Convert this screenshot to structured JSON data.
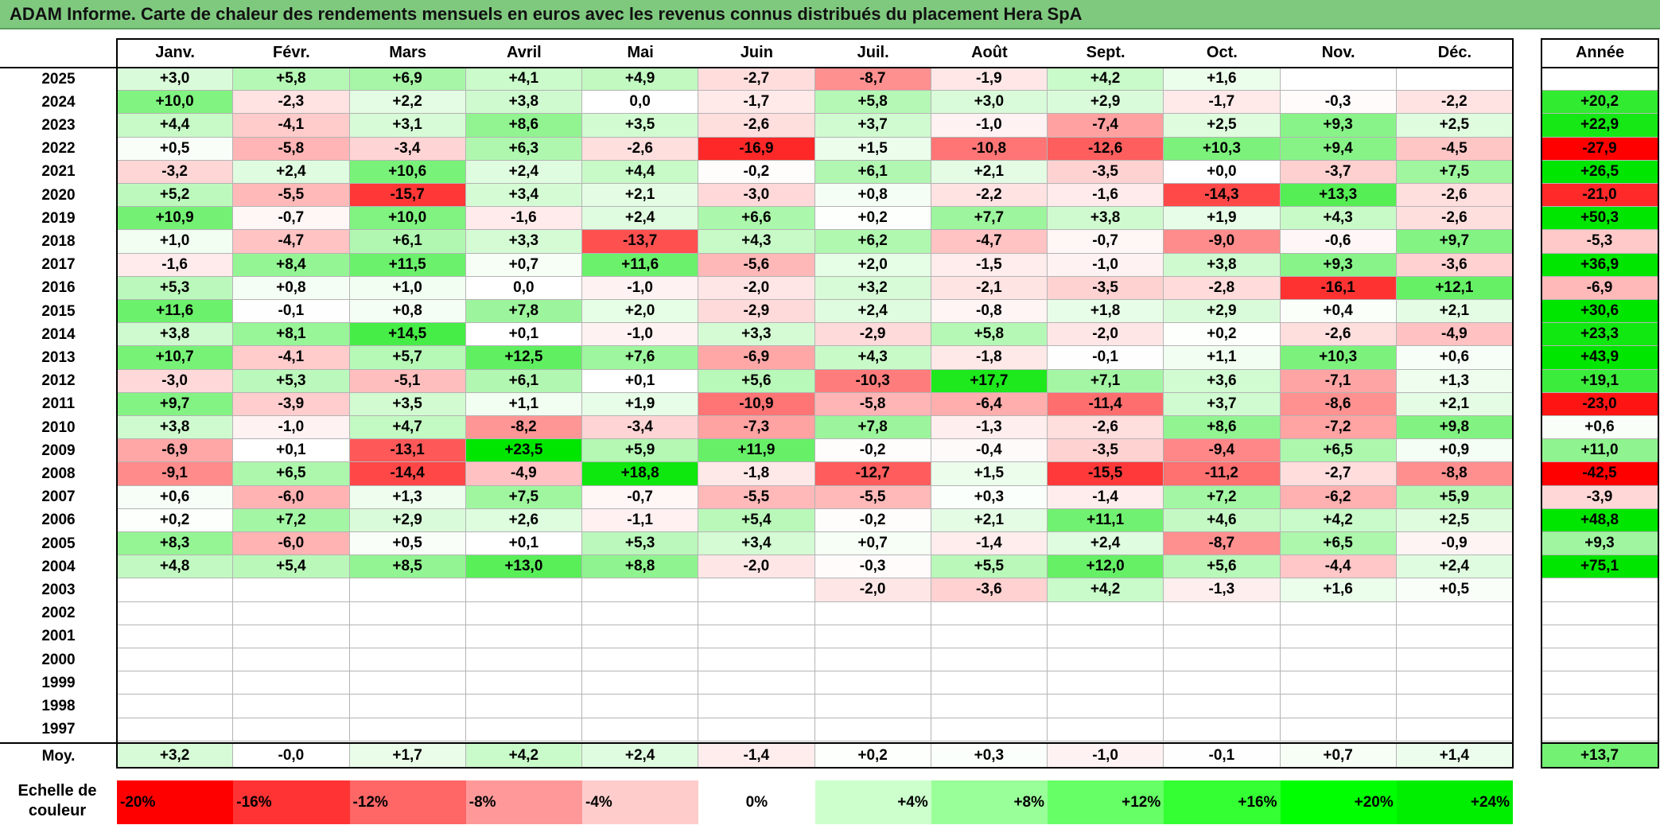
{
  "title": "ADAM Informe. Carte de chaleur des rendements mensuels en euros avec les revenus connus distribués du placement Hera SpA",
  "chart_data": {
    "type": "heatmap",
    "title": "ADAM Informe. Carte de chaleur des rendements mensuels en euros avec les revenus connus distribués du placement Hera SpA",
    "columns": [
      "Janv.",
      "Févr.",
      "Mars",
      "Avril",
      "Mai",
      "Juin",
      "Juil.",
      "Août",
      "Sept.",
      "Oct.",
      "Nov.",
      "Déc."
    ],
    "year_column_label": "Année",
    "average_row_label": "Moy.",
    "rows": [
      {
        "year": "2025",
        "values": [
          "+3,0",
          "+5,8",
          "+6,9",
          "+4,1",
          "+4,9",
          "-2,7",
          "-8,7",
          "-1,9",
          "+4,2",
          "+1,6",
          "",
          ""
        ],
        "annual": ""
      },
      {
        "year": "2024",
        "values": [
          "+10,0",
          "-2,3",
          "+2,2",
          "+3,8",
          "0,0",
          "-1,7",
          "+5,8",
          "+3,0",
          "+2,9",
          "-1,7",
          "-0,3",
          "-2,2"
        ],
        "annual": "+20,2"
      },
      {
        "year": "2023",
        "values": [
          "+4,4",
          "-4,1",
          "+3,1",
          "+8,6",
          "+3,5",
          "-2,6",
          "+3,7",
          "-1,0",
          "-7,4",
          "+2,5",
          "+9,3",
          "+2,5"
        ],
        "annual": "+22,9"
      },
      {
        "year": "2022",
        "values": [
          "+0,5",
          "-5,8",
          "-3,4",
          "+6,3",
          "-2,6",
          "-16,9",
          "+1,5",
          "-10,8",
          "-12,6",
          "+10,3",
          "+9,4",
          "-4,5"
        ],
        "annual": "-27,9"
      },
      {
        "year": "2021",
        "values": [
          "-3,2",
          "+2,4",
          "+10,6",
          "+2,4",
          "+4,4",
          "-0,2",
          "+6,1",
          "+2,1",
          "-3,5",
          "+0,0",
          "-3,7",
          "+7,5"
        ],
        "annual": "+26,5"
      },
      {
        "year": "2020",
        "values": [
          "+5,2",
          "-5,5",
          "-15,7",
          "+3,4",
          "+2,1",
          "-3,0",
          "+0,8",
          "-2,2",
          "-1,6",
          "-14,3",
          "+13,3",
          "-2,6"
        ],
        "annual": "-21,0"
      },
      {
        "year": "2019",
        "values": [
          "+10,9",
          "-0,7",
          "+10,0",
          "-1,6",
          "+2,4",
          "+6,6",
          "+0,2",
          "+7,7",
          "+3,8",
          "+1,9",
          "+4,3",
          "-2,6"
        ],
        "annual": "+50,3"
      },
      {
        "year": "2018",
        "values": [
          "+1,0",
          "-4,7",
          "+6,1",
          "+3,3",
          "-13,7",
          "+4,3",
          "+6,2",
          "-4,7",
          "-0,7",
          "-9,0",
          "-0,6",
          "+9,7"
        ],
        "annual": "-5,3"
      },
      {
        "year": "2017",
        "values": [
          "-1,6",
          "+8,4",
          "+11,5",
          "+0,7",
          "+11,6",
          "-5,6",
          "+2,0",
          "-1,5",
          "-1,0",
          "+3,8",
          "+9,3",
          "-3,6"
        ],
        "annual": "+36,9"
      },
      {
        "year": "2016",
        "values": [
          "+5,3",
          "+0,8",
          "+1,0",
          "0,0",
          "-1,0",
          "-2,0",
          "+3,2",
          "-2,1",
          "-3,5",
          "-2,8",
          "-16,1",
          "+12,1"
        ],
        "annual": "-6,9"
      },
      {
        "year": "2015",
        "values": [
          "+11,6",
          "-0,1",
          "+0,8",
          "+7,8",
          "+2,0",
          "-2,9",
          "+2,4",
          "-0,8",
          "+1,8",
          "+2,9",
          "+0,4",
          "+2,1"
        ],
        "annual": "+30,6"
      },
      {
        "year": "2014",
        "values": [
          "+3,8",
          "+8,1",
          "+14,5",
          "+0,1",
          "-1,0",
          "+3,3",
          "-2,9",
          "+5,8",
          "-2,0",
          "+0,2",
          "-2,6",
          "-4,9"
        ],
        "annual": "+23,3"
      },
      {
        "year": "2013",
        "values": [
          "+10,7",
          "-4,1",
          "+5,7",
          "+12,5",
          "+7,6",
          "-6,9",
          "+4,3",
          "-1,8",
          "-0,1",
          "+1,1",
          "+10,3",
          "+0,6"
        ],
        "annual": "+43,9"
      },
      {
        "year": "2012",
        "values": [
          "-3,0",
          "+5,3",
          "-5,1",
          "+6,1",
          "+0,1",
          "+5,6",
          "-10,3",
          "+17,7",
          "+7,1",
          "+3,6",
          "-7,1",
          "+1,3"
        ],
        "annual": "+19,1"
      },
      {
        "year": "2011",
        "values": [
          "+9,7",
          "-3,9",
          "+3,5",
          "+1,1",
          "+1,9",
          "-10,9",
          "-5,8",
          "-6,4",
          "-11,4",
          "+3,7",
          "-8,6",
          "+2,1"
        ],
        "annual": "-23,0"
      },
      {
        "year": "2010",
        "values": [
          "+3,8",
          "-1,0",
          "+4,7",
          "-8,2",
          "-3,4",
          "-7,3",
          "+7,8",
          "-1,3",
          "-2,6",
          "+8,6",
          "-7,2",
          "+9,8"
        ],
        "annual": "+0,6"
      },
      {
        "year": "2009",
        "values": [
          "-6,9",
          "+0,1",
          "-13,1",
          "+23,5",
          "+5,9",
          "+11,9",
          "-0,2",
          "-0,4",
          "-3,5",
          "-9,4",
          "+6,5",
          "+0,9"
        ],
        "annual": "+11,0"
      },
      {
        "year": "2008",
        "values": [
          "-9,1",
          "+6,5",
          "-14,4",
          "-4,9",
          "+18,8",
          "-1,8",
          "-12,7",
          "+1,5",
          "-15,5",
          "-11,2",
          "-2,7",
          "-8,8"
        ],
        "annual": "-42,5"
      },
      {
        "year": "2007",
        "values": [
          "+0,6",
          "-6,0",
          "+1,3",
          "+7,5",
          "-0,7",
          "-5,5",
          "-5,5",
          "+0,3",
          "-1,4",
          "+7,2",
          "-6,2",
          "+5,9"
        ],
        "annual": "-3,9"
      },
      {
        "year": "2006",
        "values": [
          "+0,2",
          "+7,2",
          "+2,9",
          "+2,6",
          "-1,1",
          "+5,4",
          "-0,2",
          "+2,1",
          "+11,1",
          "+4,6",
          "+4,2",
          "+2,5"
        ],
        "annual": "+48,8"
      },
      {
        "year": "2005",
        "values": [
          "+8,3",
          "-6,0",
          "+0,5",
          "+0,1",
          "+5,3",
          "+3,4",
          "+0,7",
          "-1,4",
          "+2,4",
          "-8,7",
          "+6,5",
          "-0,9"
        ],
        "annual": "+9,3"
      },
      {
        "year": "2004",
        "values": [
          "+4,8",
          "+5,4",
          "+8,5",
          "+13,0",
          "+8,8",
          "-2,0",
          "-0,3",
          "+5,5",
          "+12,0",
          "+5,6",
          "-4,4",
          "+2,4"
        ],
        "annual": "+75,1"
      },
      {
        "year": "2003",
        "values": [
          "",
          "",
          "",
          "",
          "",
          "",
          "-2,0",
          "-3,6",
          "+4,2",
          "-1,3",
          "+1,6",
          "+0,5"
        ],
        "annual": ""
      },
      {
        "year": "2002",
        "values": [
          "",
          "",
          "",
          "",
          "",
          "",
          "",
          "",
          "",
          "",
          "",
          ""
        ],
        "annual": ""
      },
      {
        "year": "2001",
        "values": [
          "",
          "",
          "",
          "",
          "",
          "",
          "",
          "",
          "",
          "",
          "",
          ""
        ],
        "annual": ""
      },
      {
        "year": "2000",
        "values": [
          "",
          "",
          "",
          "",
          "",
          "",
          "",
          "",
          "",
          "",
          "",
          ""
        ],
        "annual": ""
      },
      {
        "year": "1999",
        "values": [
          "",
          "",
          "",
          "",
          "",
          "",
          "",
          "",
          "",
          "",
          "",
          ""
        ],
        "annual": ""
      },
      {
        "year": "1998",
        "values": [
          "",
          "",
          "",
          "",
          "",
          "",
          "",
          "",
          "",
          "",
          "",
          ""
        ],
        "annual": ""
      },
      {
        "year": "1997",
        "values": [
          "",
          "",
          "",
          "",
          "",
          "",
          "",
          "",
          "",
          "",
          "",
          ""
        ],
        "annual": ""
      }
    ],
    "average": {
      "values": [
        "+3,2",
        "-0,0",
        "+1,7",
        "+4,2",
        "+2,4",
        "-1,4",
        "+0,2",
        "+0,3",
        "-1,0",
        "-0,1",
        "+0,7",
        "+1,4"
      ],
      "annual": "+13,7"
    },
    "color_scale": {
      "label": "Echelle de couleur",
      "entries": [
        {
          "label": "-20%",
          "value": -20,
          "color": "#ff0000"
        },
        {
          "label": "-16%",
          "value": -16,
          "color": "#ff3333"
        },
        {
          "label": "-12%",
          "value": -12,
          "color": "#ff6666"
        },
        {
          "label": "-8%",
          "value": -8,
          "color": "#ff9999"
        },
        {
          "label": "-4%",
          "value": -4,
          "color": "#ffcccc"
        },
        {
          "label": "0%",
          "value": 0,
          "color": "#ffffff"
        },
        {
          "label": "+4%",
          "value": 4,
          "color": "#ccffcc"
        },
        {
          "label": "+8%",
          "value": 8,
          "color": "#99ff99"
        },
        {
          "label": "+12%",
          "value": 12,
          "color": "#66ff66"
        },
        {
          "label": "+16%",
          "value": 16,
          "color": "#33ff33"
        },
        {
          "label": "+20%",
          "value": 20,
          "color": "#00ff00"
        },
        {
          "label": "+24%",
          "value": 24,
          "color": "#00ee00"
        }
      ]
    }
  }
}
